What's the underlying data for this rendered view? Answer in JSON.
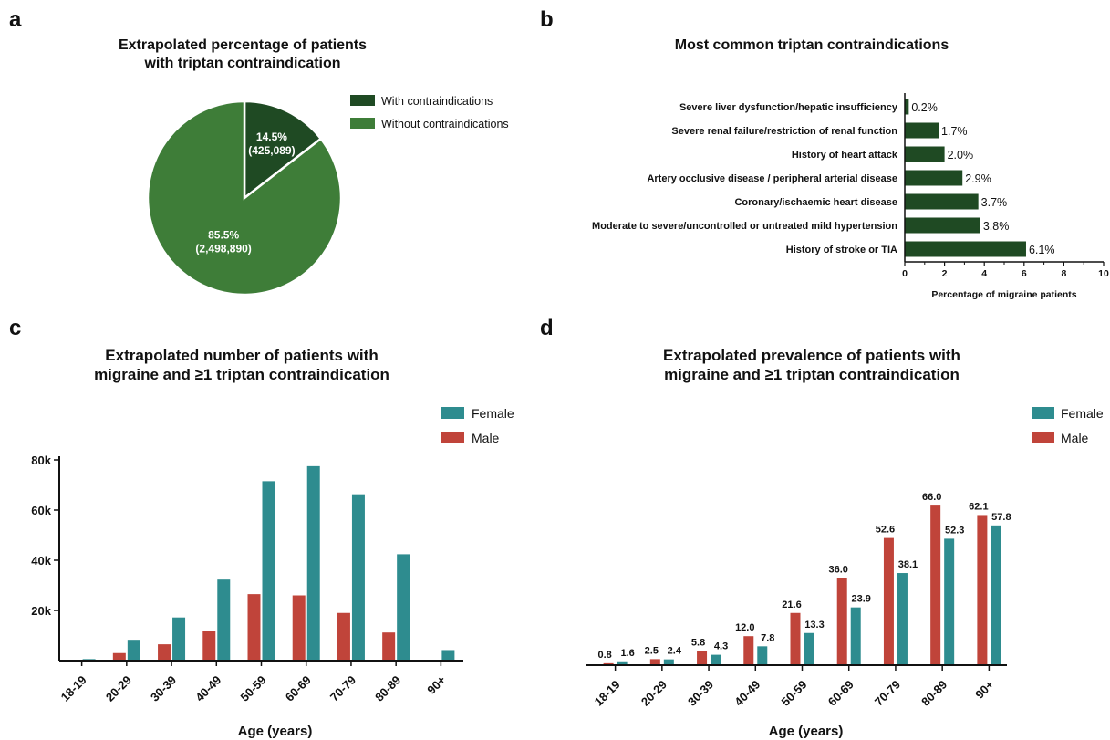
{
  "panels": {
    "a": {
      "letter": "a",
      "title1": "Extrapolated percentage of patients",
      "title2": "with triptan contraindication"
    },
    "b": {
      "letter": "b",
      "title1": "Most common triptan contraindications"
    },
    "c": {
      "letter": "c",
      "title1": "Extrapolated number of patients with",
      "title2": "migraine and ≥1 triptan contraindication"
    },
    "d": {
      "letter": "d",
      "title1": "Extrapolated prevalence of patients with",
      "title2": "migraine and ≥1 triptan contraindication"
    }
  },
  "colors": {
    "dark_green": "#1f4a23",
    "green": "#3e7d38",
    "teal": "#2e8c8f",
    "red": "#c0443a"
  },
  "chart_data": [
    {
      "type": "pie",
      "title": "Extrapolated percentage of patients with triptan contraindication",
      "slices": [
        {
          "name": "With contraindications",
          "value": 14.5,
          "pct_label": "14.5%",
          "count_label": "(425,089)"
        },
        {
          "name": "Without contraindications",
          "value": 85.5,
          "pct_label": "85.5%",
          "count_label": "(2,498,890)"
        }
      ],
      "legend": "top-right"
    },
    {
      "type": "bar",
      "orientation": "horizontal",
      "title": "Most common triptan contraindications",
      "categories": [
        "Severe liver dysfunction/hepatic insufficiency",
        "Severe renal failure/restriction of renal function",
        "History of heart attack",
        "Artery occlusive disease / peripheral arterial disease",
        "Coronary/ischaemic heart disease",
        "Moderate to severe/uncontrolled or untreated mild hypertension",
        "History of stroke or TIA"
      ],
      "values": [
        0.2,
        1.7,
        2.0,
        2.9,
        3.7,
        3.8,
        6.1
      ],
      "value_labels": [
        "0.2%",
        "1.7%",
        "2.0%",
        "2.9%",
        "3.7%",
        "3.8%",
        "6.1%"
      ],
      "xlabel": "Percentage of migraine patients",
      "xlim": [
        0,
        10
      ],
      "xticks": [
        "0",
        "2",
        "4",
        "6",
        "8",
        "10"
      ]
    },
    {
      "type": "bar",
      "title": "Extrapolated number of patients with migraine and ≥1 triptan contraindication",
      "categories": [
        "18-19",
        "20-29",
        "30-39",
        "40-49",
        "50-59",
        "60-69",
        "70-79",
        "80-89",
        "90+"
      ],
      "series": [
        {
          "name": "Male",
          "values": [
            200,
            3000,
            6500,
            11800,
            26500,
            26000,
            19000,
            11200,
            200
          ]
        },
        {
          "name": "Female",
          "values": [
            600,
            8300,
            17200,
            32300,
            71500,
            77500,
            66300,
            42400,
            4200
          ]
        }
      ],
      "xlabel": "Age (years)",
      "ylim": [
        0,
        80000
      ],
      "yticks": [
        "20k",
        "40k",
        "60k",
        "80k"
      ],
      "legend": "top-right"
    },
    {
      "type": "bar",
      "title": "Extrapolated prevalence of patients with migraine and ≥1 triptan contraindication",
      "categories": [
        "18-19",
        "20-29",
        "30-39",
        "40-49",
        "50-59",
        "60-69",
        "70-79",
        "80-89",
        "90+"
      ],
      "series": [
        {
          "name": "Male",
          "values": [
            0.8,
            2.5,
            5.8,
            12.0,
            21.6,
            36.0,
            52.6,
            66.0,
            62.1
          ],
          "labels": [
            "0.8",
            "2.5",
            "5.8",
            "12.0",
            "21.6",
            "36.0",
            "52.6",
            "66.0",
            "62.1"
          ]
        },
        {
          "name": "Female",
          "values": [
            1.6,
            2.4,
            4.3,
            7.8,
            13.3,
            23.9,
            38.1,
            52.3,
            57.8
          ],
          "labels": [
            "1.6",
            "2.4",
            "4.3",
            "7.8",
            "13.3",
            "23.9",
            "38.1",
            "52.3",
            "57.8"
          ]
        }
      ],
      "xlabel": "Age (years)",
      "ylim": [
        0,
        66
      ],
      "legend": "top-right"
    }
  ]
}
